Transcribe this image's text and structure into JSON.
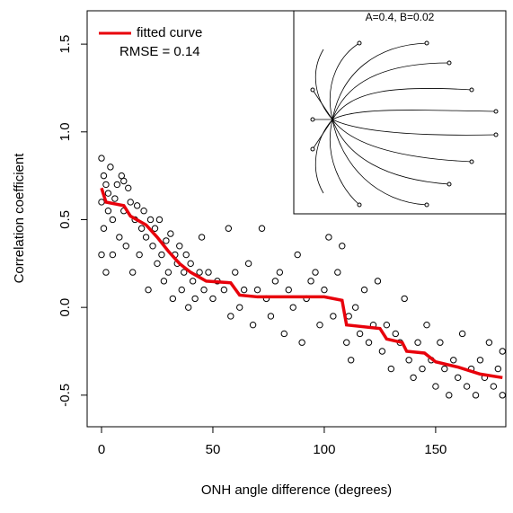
{
  "chart_data": {
    "type": "scatter",
    "xlabel": "ONH angle difference (degrees)",
    "ylabel": "Correlation coefficient",
    "annotation": "RMSE = 0.14",
    "inset_title": "A=0.4, B=0.02",
    "legend": "top-left",
    "xlim": [
      -6.45,
      181.5
    ],
    "ylim": [
      -0.68,
      1.69
    ],
    "xticks": [
      0,
      50,
      100,
      150
    ],
    "yticks": [
      {
        "value": -0.5,
        "label": "-0.5"
      },
      {
        "value": 0,
        "label": "0.0"
      },
      0.5,
      {
        "value": 1,
        "label": "1.0"
      },
      1.5
    ],
    "points": {
      "color": "#000000",
      "x": [
        0,
        0,
        0,
        1,
        1,
        2,
        2,
        3,
        3,
        4,
        5,
        5,
        6,
        7,
        8,
        9,
        10,
        10,
        11,
        12,
        13,
        14,
        15,
        16,
        17,
        18,
        19,
        20,
        21,
        22,
        23,
        24,
        25,
        26,
        27,
        28,
        29,
        30,
        31,
        32,
        33,
        34,
        35,
        36,
        37,
        38,
        39,
        40,
        41,
        42,
        44,
        45,
        46,
        48,
        50,
        52,
        55,
        57,
        58,
        60,
        62,
        64,
        66,
        68,
        70,
        72,
        74,
        76,
        78,
        80,
        82,
        84,
        86,
        88,
        90,
        92,
        94,
        96,
        98,
        100,
        102,
        104,
        106,
        108,
        110,
        111,
        112,
        114,
        116,
        118,
        120,
        122,
        124,
        126,
        128,
        130,
        132,
        134,
        136,
        138,
        140,
        142,
        144,
        146,
        148,
        150,
        152,
        154,
        156,
        158,
        160,
        162,
        164,
        166,
        168,
        170,
        172,
        174,
        176,
        178,
        180,
        180
      ],
      "y": [
        0.85,
        0.6,
        0.3,
        0.75,
        0.45,
        0.7,
        0.2,
        0.65,
        0.55,
        0.8,
        0.5,
        0.3,
        0.62,
        0.7,
        0.4,
        0.75,
        0.72,
        0.55,
        0.35,
        0.68,
        0.6,
        0.2,
        0.5,
        0.58,
        0.3,
        0.45,
        0.55,
        0.4,
        0.1,
        0.5,
        0.35,
        0.45,
        0.25,
        0.5,
        0.3,
        0.15,
        0.38,
        0.2,
        0.42,
        0.05,
        0.3,
        0.25,
        0.35,
        0.1,
        0.2,
        0.3,
        0,
        0.25,
        0.15,
        0.05,
        0.2,
        0.4,
        0.1,
        0.2,
        0.05,
        0.15,
        0.1,
        0.45,
        -0.05,
        0.2,
        0,
        0.1,
        0.25,
        -0.1,
        0.1,
        0.45,
        0.05,
        -0.05,
        0.15,
        0.2,
        -0.15,
        0.1,
        0,
        0.3,
        -0.2,
        0.05,
        0.15,
        0.2,
        -0.1,
        0.1,
        0.4,
        -0.05,
        0.2,
        0.35,
        -0.2,
        -0.05,
        -0.3,
        0,
        -0.15,
        0.1,
        -0.2,
        -0.1,
        0.15,
        -0.25,
        -0.1,
        -0.35,
        -0.15,
        -0.2,
        0.05,
        -0.3,
        -0.4,
        -0.2,
        -0.35,
        -0.1,
        -0.3,
        -0.45,
        -0.2,
        -0.35,
        -0.5,
        -0.3,
        -0.4,
        -0.15,
        -0.45,
        -0.35,
        -0.5,
        -0.3,
        -0.4,
        -0.2,
        -0.45,
        -0.35,
        -0.5,
        -0.25
      ]
    },
    "series": [
      {
        "name": "fitted curve",
        "color": "#e8000b",
        "x": [
          0,
          2,
          10,
          13,
          20,
          25,
          30,
          35,
          40,
          47,
          58,
          62,
          70,
          100,
          108,
          110,
          125,
          128,
          135,
          137,
          145,
          150,
          160,
          170,
          180
        ],
        "values": [
          0.68,
          0.6,
          0.58,
          0.52,
          0.47,
          0.4,
          0.32,
          0.25,
          0.2,
          0.15,
          0.14,
          0.07,
          0.06,
          0.06,
          0.04,
          -0.1,
          -0.12,
          -0.18,
          -0.2,
          -0.25,
          -0.26,
          -0.31,
          -0.34,
          -0.38,
          -0.4
        ]
      }
    ]
  }
}
